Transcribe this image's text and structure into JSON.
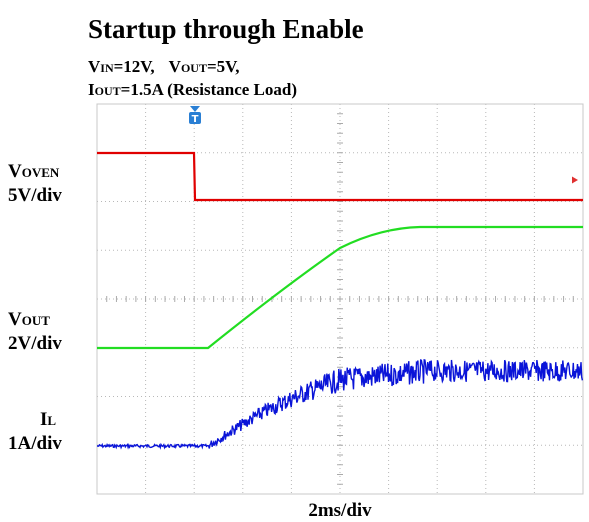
{
  "title": "Startup through Enable",
  "conditions": {
    "line1": [
      {
        "main": "V",
        "sub": "IN",
        "rest": "=12V,"
      },
      {
        "main": "V",
        "sub": "OUT",
        "rest": "=5V,"
      }
    ],
    "line2": [
      {
        "main": "I",
        "sub": "OUT",
        "rest": "=1.5A (Resistance Load)"
      }
    ]
  },
  "channels": [
    {
      "main": "V",
      "sub": "OVEN",
      "scale": "5V/div"
    },
    {
      "main": "V",
      "sub": "OUT",
      "scale": "2V/div"
    },
    {
      "main": "I",
      "sub": "L",
      "scale": "1A/div"
    }
  ],
  "trigger": "T",
  "timebase": "2ms/div"
}
